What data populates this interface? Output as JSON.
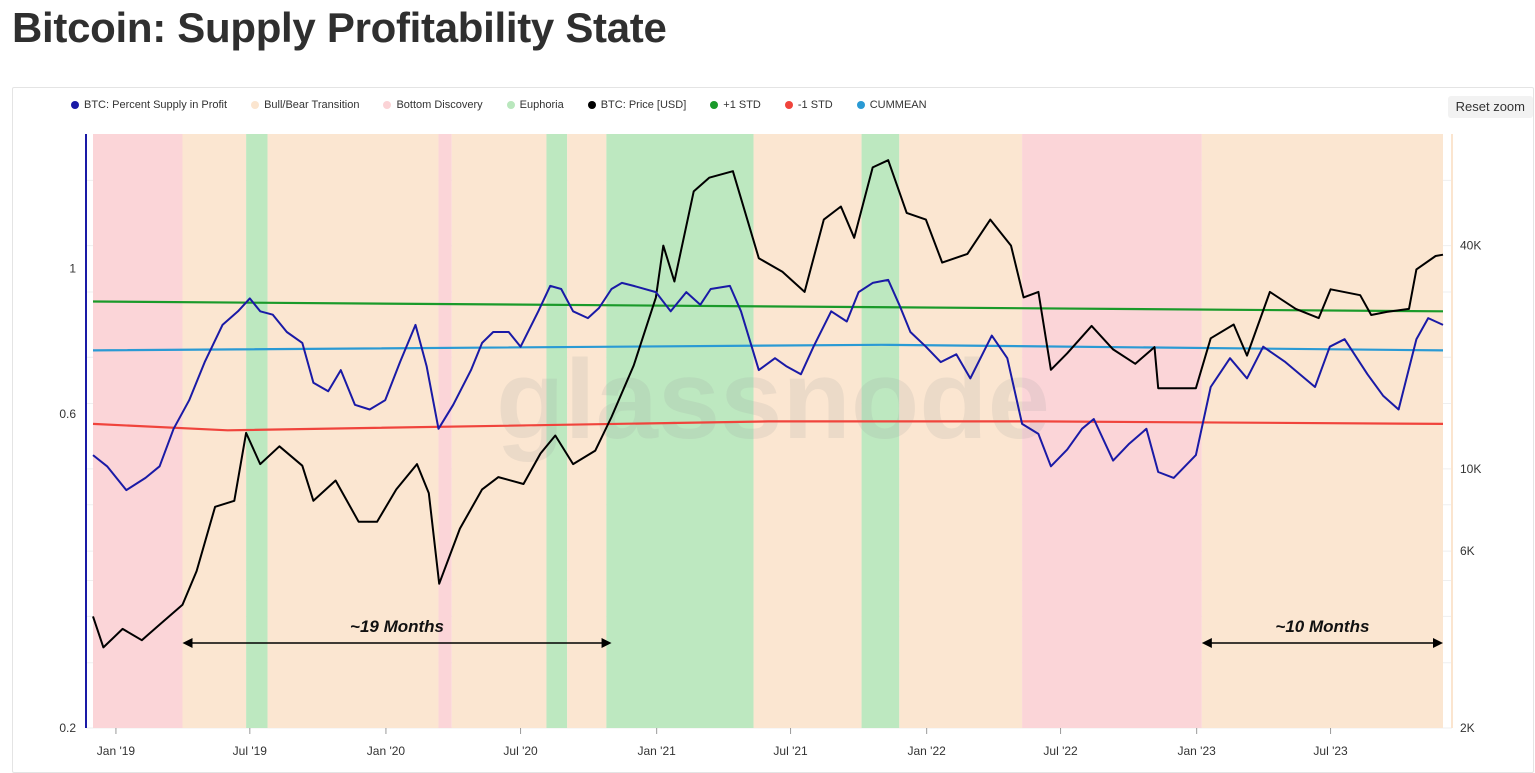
{
  "page": {
    "title": "Bitcoin: Supply Profitability State",
    "reset_zoom": "Reset zoom",
    "watermark": "glassnode"
  },
  "legend": [
    {
      "label": "BTC: Percent Supply in Profit",
      "color": "#1a1aa6"
    },
    {
      "label": "Bull/Bear Transition",
      "color": "#fbe5cf"
    },
    {
      "label": "Bottom Discovery",
      "color": "#fbd3d6"
    },
    {
      "label": "Euphoria",
      "color": "#b9e7bd"
    },
    {
      "label": "BTC: Price [USD]",
      "color": "#000000"
    },
    {
      "label": "+1 STD",
      "color": "#1a9a2a"
    },
    {
      "label": "-1 STD",
      "color": "#f0443c"
    },
    {
      "label": "CUMMEAN",
      "color": "#2a9ad4"
    }
  ],
  "chart_data": {
    "type": "line",
    "x_axis": {
      "type": "date",
      "range": [
        "2018-12-01",
        "2023-11-30"
      ],
      "ticks": [
        "Jan '19",
        "Jul '19",
        "Jan '20",
        "Jul '20",
        "Jan '21",
        "Jul '21",
        "Jan '22",
        "Jul '22",
        "Jan '23",
        "Jul '23"
      ]
    },
    "y_left": {
      "scale": "log",
      "ticks": [
        "0.2",
        "0.6",
        "1"
      ],
      "range": [
        0.2,
        1.6
      ]
    },
    "y_right": {
      "scale": "log",
      "ticks": [
        "2K",
        "6K",
        "10K",
        "40K"
      ],
      "range": [
        2000,
        80000
      ]
    },
    "grid": true,
    "legend_position": "top-left",
    "series": [
      {
        "name": "BTC: Percent Supply in Profit",
        "axis": "left",
        "points": [
          [
            "2018-12-01",
            0.52
          ],
          [
            "2018-12-20",
            0.5
          ],
          [
            "2019-01-15",
            0.46
          ],
          [
            "2019-02-10",
            0.48
          ],
          [
            "2019-03-01",
            0.5
          ],
          [
            "2019-03-20",
            0.57
          ],
          [
            "2019-04-10",
            0.63
          ],
          [
            "2019-05-01",
            0.72
          ],
          [
            "2019-05-25",
            0.82
          ],
          [
            "2019-06-15",
            0.86
          ],
          [
            "2019-07-01",
            0.9
          ],
          [
            "2019-07-15",
            0.86
          ],
          [
            "2019-08-01",
            0.85
          ],
          [
            "2019-08-20",
            0.8
          ],
          [
            "2019-09-10",
            0.77
          ],
          [
            "2019-09-25",
            0.67
          ],
          [
            "2019-10-15",
            0.65
          ],
          [
            "2019-11-01",
            0.7
          ],
          [
            "2019-11-20",
            0.62
          ],
          [
            "2019-12-10",
            0.61
          ],
          [
            "2019-12-31",
            0.63
          ],
          [
            "2020-01-20",
            0.72
          ],
          [
            "2020-02-10",
            0.82
          ],
          [
            "2020-02-25",
            0.71
          ],
          [
            "2020-03-12",
            0.57
          ],
          [
            "2020-04-01",
            0.62
          ],
          [
            "2020-04-25",
            0.7
          ],
          [
            "2020-05-10",
            0.77
          ],
          [
            "2020-05-25",
            0.8
          ],
          [
            "2020-06-15",
            0.8
          ],
          [
            "2020-07-01",
            0.76
          ],
          [
            "2020-07-25",
            0.86
          ],
          [
            "2020-08-10",
            0.94
          ],
          [
            "2020-08-25",
            0.93
          ],
          [
            "2020-09-10",
            0.86
          ],
          [
            "2020-09-30",
            0.84
          ],
          [
            "2020-10-15",
            0.87
          ],
          [
            "2020-11-01",
            0.93
          ],
          [
            "2020-11-15",
            0.95
          ],
          [
            "2020-12-01",
            0.94
          ],
          [
            "2020-12-31",
            0.92
          ],
          [
            "2021-01-20",
            0.86
          ],
          [
            "2021-02-10",
            0.92
          ],
          [
            "2021-03-01",
            0.88
          ],
          [
            "2021-03-15",
            0.93
          ],
          [
            "2021-04-10",
            0.94
          ],
          [
            "2021-04-25",
            0.86
          ],
          [
            "2021-05-19",
            0.7
          ],
          [
            "2021-06-10",
            0.73
          ],
          [
            "2021-06-25",
            0.71
          ],
          [
            "2021-07-15",
            0.69
          ],
          [
            "2021-08-01",
            0.76
          ],
          [
            "2021-08-25",
            0.86
          ],
          [
            "2021-09-15",
            0.83
          ],
          [
            "2021-10-01",
            0.92
          ],
          [
            "2021-10-20",
            0.95
          ],
          [
            "2021-11-10",
            0.96
          ],
          [
            "2021-11-25",
            0.88
          ],
          [
            "2021-12-10",
            0.8
          ],
          [
            "2021-12-31",
            0.76
          ],
          [
            "2022-01-20",
            0.72
          ],
          [
            "2022-02-10",
            0.74
          ],
          [
            "2022-03-01",
            0.68
          ],
          [
            "2022-03-30",
            0.79
          ],
          [
            "2022-04-20",
            0.73
          ],
          [
            "2022-05-10",
            0.58
          ],
          [
            "2022-06-01",
            0.56
          ],
          [
            "2022-06-18",
            0.5
          ],
          [
            "2022-07-10",
            0.53
          ],
          [
            "2022-07-30",
            0.57
          ],
          [
            "2022-08-15",
            0.59
          ],
          [
            "2022-09-10",
            0.51
          ],
          [
            "2022-10-01",
            0.54
          ],
          [
            "2022-10-25",
            0.57
          ],
          [
            "2022-11-10",
            0.49
          ],
          [
            "2022-12-01",
            0.48
          ],
          [
            "2022-12-31",
            0.52
          ],
          [
            "2023-01-20",
            0.66
          ],
          [
            "2023-02-15",
            0.73
          ],
          [
            "2023-03-10",
            0.68
          ],
          [
            "2023-04-01",
            0.76
          ],
          [
            "2023-05-01",
            0.72
          ],
          [
            "2023-06-10",
            0.66
          ],
          [
            "2023-06-30",
            0.76
          ],
          [
            "2023-07-20",
            0.78
          ],
          [
            "2023-08-20",
            0.69
          ],
          [
            "2023-09-10",
            0.64
          ],
          [
            "2023-10-01",
            0.61
          ],
          [
            "2023-10-25",
            0.78
          ],
          [
            "2023-11-10",
            0.84
          ],
          [
            "2023-11-30",
            0.82
          ]
        ]
      },
      {
        "name": "BTC: Price [USD]",
        "axis": "right",
        "points": [
          [
            "2018-12-01",
            4000
          ],
          [
            "2018-12-15",
            3300
          ],
          [
            "2019-01-10",
            3700
          ],
          [
            "2019-02-05",
            3450
          ],
          [
            "2019-03-01",
            3800
          ],
          [
            "2019-04-01",
            4300
          ],
          [
            "2019-04-20",
            5300
          ],
          [
            "2019-05-15",
            7900
          ],
          [
            "2019-06-10",
            8200
          ],
          [
            "2019-06-26",
            12500
          ],
          [
            "2019-07-15",
            10300
          ],
          [
            "2019-08-10",
            11500
          ],
          [
            "2019-09-10",
            10200
          ],
          [
            "2019-09-25",
            8200
          ],
          [
            "2019-10-25",
            9300
          ],
          [
            "2019-11-25",
            7200
          ],
          [
            "2019-12-20",
            7200
          ],
          [
            "2020-01-15",
            8800
          ],
          [
            "2020-02-12",
            10300
          ],
          [
            "2020-02-28",
            8600
          ],
          [
            "2020-03-13",
            4900
          ],
          [
            "2020-04-10",
            6900
          ],
          [
            "2020-05-10",
            8800
          ],
          [
            "2020-06-01",
            9500
          ],
          [
            "2020-07-05",
            9100
          ],
          [
            "2020-07-28",
            11000
          ],
          [
            "2020-08-17",
            12300
          ],
          [
            "2020-09-10",
            10300
          ],
          [
            "2020-10-10",
            11200
          ],
          [
            "2020-11-01",
            13800
          ],
          [
            "2020-12-01",
            19000
          ],
          [
            "2020-12-31",
            29000
          ],
          [
            "2021-01-10",
            40000
          ],
          [
            "2021-01-25",
            32000
          ],
          [
            "2021-02-20",
            56000
          ],
          [
            "2021-03-13",
            61000
          ],
          [
            "2021-04-14",
            63500
          ],
          [
            "2021-05-19",
            37000
          ],
          [
            "2021-06-20",
            34000
          ],
          [
            "2021-07-20",
            30000
          ],
          [
            "2021-08-15",
            47000
          ],
          [
            "2021-09-07",
            51000
          ],
          [
            "2021-09-25",
            42000
          ],
          [
            "2021-10-20",
            65000
          ],
          [
            "2021-11-10",
            68000
          ],
          [
            "2021-12-05",
            49000
          ],
          [
            "2021-12-31",
            47000
          ],
          [
            "2022-01-22",
            36000
          ],
          [
            "2022-02-25",
            38000
          ],
          [
            "2022-03-28",
            47000
          ],
          [
            "2022-04-25",
            40000
          ],
          [
            "2022-05-12",
            29000
          ],
          [
            "2022-06-01",
            30000
          ],
          [
            "2022-06-18",
            18500
          ],
          [
            "2022-07-10",
            20500
          ],
          [
            "2022-08-12",
            24300
          ],
          [
            "2022-09-10",
            21000
          ],
          [
            "2022-10-10",
            19200
          ],
          [
            "2022-11-05",
            21300
          ],
          [
            "2022-11-10",
            16500
          ],
          [
            "2022-12-31",
            16500
          ],
          [
            "2023-01-20",
            22500
          ],
          [
            "2023-02-20",
            24500
          ],
          [
            "2023-03-10",
            20200
          ],
          [
            "2023-04-10",
            30000
          ],
          [
            "2023-05-15",
            27000
          ],
          [
            "2023-06-15",
            25500
          ],
          [
            "2023-07-01",
            30500
          ],
          [
            "2023-08-10",
            29400
          ],
          [
            "2023-08-25",
            26000
          ],
          [
            "2023-09-15",
            26500
          ],
          [
            "2023-10-15",
            27000
          ],
          [
            "2023-10-25",
            34500
          ],
          [
            "2023-11-20",
            37500
          ],
          [
            "2023-11-30",
            37800
          ]
        ]
      },
      {
        "name": "+1 STD",
        "axis": "left",
        "points": [
          [
            "2018-12-01",
            0.89
          ],
          [
            "2023-11-30",
            0.86
          ]
        ]
      },
      {
        "name": "CUMMEAN",
        "axis": "left",
        "points": [
          [
            "2018-12-01",
            0.75
          ],
          [
            "2021-11-01",
            0.765
          ],
          [
            "2023-11-30",
            0.75
          ]
        ]
      },
      {
        "name": "-1 STD",
        "axis": "left",
        "points": [
          [
            "2018-12-01",
            0.58
          ],
          [
            "2019-06-01",
            0.567
          ],
          [
            "2021-06-01",
            0.585
          ],
          [
            "2022-06-01",
            0.585
          ],
          [
            "2023-11-30",
            0.58
          ]
        ]
      }
    ],
    "regimes": [
      {
        "state": "Bottom Discovery",
        "start": "2018-12-01",
        "end": "2019-04-01"
      },
      {
        "state": "Bull/Bear Transition",
        "start": "2019-04-01",
        "end": "2019-06-26"
      },
      {
        "state": "Euphoria",
        "start": "2019-06-26",
        "end": "2019-07-25"
      },
      {
        "state": "Bull/Bear Transition",
        "start": "2019-07-25",
        "end": "2020-03-12"
      },
      {
        "state": "Bottom Discovery",
        "start": "2020-03-12",
        "end": "2020-03-30"
      },
      {
        "state": "Bull/Bear Transition",
        "start": "2020-03-30",
        "end": "2020-08-05"
      },
      {
        "state": "Euphoria",
        "start": "2020-08-05",
        "end": "2020-09-02"
      },
      {
        "state": "Bull/Bear Transition",
        "start": "2020-09-02",
        "end": "2020-10-25"
      },
      {
        "state": "Euphoria",
        "start": "2020-10-25",
        "end": "2021-05-12"
      },
      {
        "state": "Bull/Bear Transition",
        "start": "2021-05-12",
        "end": "2021-10-05"
      },
      {
        "state": "Euphoria",
        "start": "2021-10-05",
        "end": "2021-11-25"
      },
      {
        "state": "Bull/Bear Transition",
        "start": "2021-11-25",
        "end": "2022-05-10"
      },
      {
        "state": "Bottom Discovery",
        "start": "2022-05-10",
        "end": "2023-01-08"
      },
      {
        "state": "Bull/Bear Transition",
        "start": "2023-01-08",
        "end": "2023-11-30"
      }
    ],
    "annotations": [
      {
        "text": "~19 Months",
        "start": "2019-04-01",
        "end": "2020-11-01"
      },
      {
        "text": "~10 Months",
        "start": "2023-01-08",
        "end": "2023-11-30"
      }
    ]
  }
}
